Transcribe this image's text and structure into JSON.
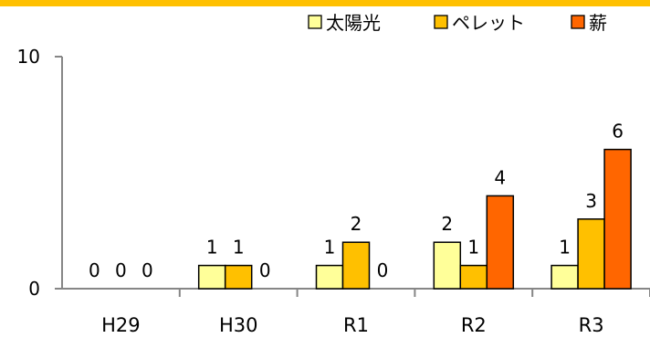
{
  "colors": {
    "band": "#FFC000",
    "axis": "#868686",
    "bar_stroke": "#000000"
  },
  "chart_data": {
    "type": "bar",
    "categories": [
      "H29",
      "H30",
      "R1",
      "R2",
      "R3"
    ],
    "series": [
      {
        "name": "太陽光",
        "color": "#FFFF99",
        "values": [
          0,
          1,
          1,
          2,
          1
        ]
      },
      {
        "name": "ペレット",
        "color": "#FFC000",
        "values": [
          0,
          1,
          2,
          1,
          3
        ]
      },
      {
        "name": "薪",
        "color": "#FF6600",
        "values": [
          0,
          0,
          0,
          4,
          6
        ]
      }
    ],
    "ylim": [
      0,
      10
    ],
    "yticks": [
      0,
      10
    ],
    "grid": false,
    "data_labels": true,
    "legend_position": "top-right"
  }
}
